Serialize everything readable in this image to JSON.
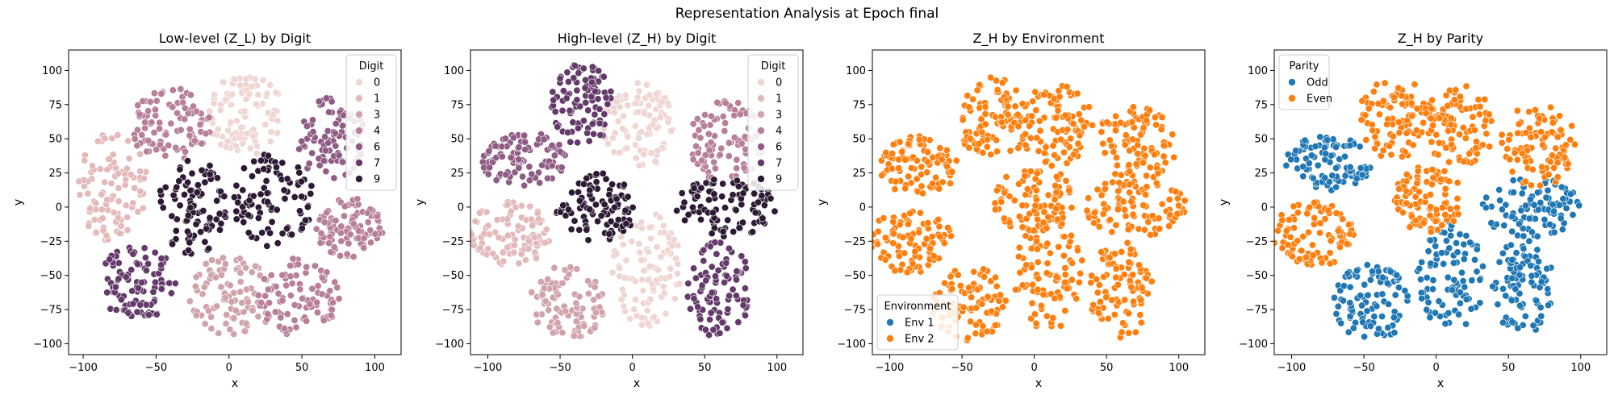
{
  "figure": {
    "suptitle": "Representation Analysis at Epoch final"
  },
  "chart_data": [
    {
      "type": "scatter",
      "title": "Low-level (Z_L) by Digit",
      "xlabel": "x",
      "ylabel": "y",
      "xlim": [
        -110,
        118
      ],
      "ylim": [
        -108,
        115
      ],
      "xticks": [
        -100,
        -50,
        0,
        50,
        100
      ],
      "yticks": [
        -100,
        -75,
        -50,
        -25,
        0,
        25,
        50,
        75,
        100
      ],
      "grid": false,
      "legend": {
        "title": "Digit",
        "placement": "top-right"
      },
      "series": [
        {
          "name": "0",
          "color": "#efd6d3",
          "clusters": [
            {
              "cx": 12,
              "cy": 68,
              "rx": 26,
              "ry": 30
            }
          ]
        },
        {
          "name": "1",
          "color": "#e3b9b9",
          "clusters": [
            {
              "cx": -80,
              "cy": 15,
              "rx": 24,
              "ry": 40
            }
          ]
        },
        {
          "name": "3",
          "color": "#d0a2ac",
          "clusters": [
            {
              "cx": 2,
              "cy": -65,
              "rx": 30,
              "ry": 30
            }
          ]
        },
        {
          "name": "4",
          "color": "#b77f99",
          "clusters": [
            {
              "cx": 48,
              "cy": -65,
              "rx": 28,
              "ry": 30
            },
            {
              "cx": 82,
              "cy": -15,
              "rx": 24,
              "ry": 22
            },
            {
              "cx": -40,
              "cy": 60,
              "rx": 28,
              "ry": 28
            }
          ]
        },
        {
          "name": "6",
          "color": "#8e5c84",
          "clusters": [
            {
              "cx": 70,
              "cy": 50,
              "rx": 24,
              "ry": 30
            }
          ]
        },
        {
          "name": "7",
          "color": "#633a69",
          "clusters": [
            {
              "cx": -62,
              "cy": -55,
              "rx": 28,
              "ry": 28
            }
          ]
        },
        {
          "name": "9",
          "color": "#2d1a35",
          "clusters": [
            {
              "cx": -25,
              "cy": 0,
              "rx": 24,
              "ry": 35
            },
            {
              "cx": 30,
              "cy": 5,
              "rx": 28,
              "ry": 35
            }
          ]
        }
      ]
    },
    {
      "type": "scatter",
      "title": "High-level (Z_H) by Digit",
      "xlabel": "x",
      "ylabel": "y",
      "xlim": [
        -112,
        118
      ],
      "ylim": [
        -108,
        115
      ],
      "xticks": [
        -100,
        -50,
        0,
        50,
        100
      ],
      "yticks": [
        -100,
        -75,
        -50,
        -25,
        0,
        25,
        50,
        75,
        100
      ],
      "grid": false,
      "legend": {
        "title": "Digit",
        "placement": "top-right"
      },
      "series": [
        {
          "name": "0",
          "color": "#efd6d3",
          "clusters": [
            {
              "cx": 5,
              "cy": 60,
              "rx": 25,
              "ry": 32
            },
            {
              "cx": 10,
              "cy": -45,
              "rx": 24,
              "ry": 42
            }
          ]
        },
        {
          "name": "1",
          "color": "#e3b9b9",
          "clusters": [
            {
              "cx": -85,
              "cy": -20,
              "rx": 28,
              "ry": 24
            }
          ]
        },
        {
          "name": "3",
          "color": "#d0a2ac",
          "clusters": [
            {
              "cx": -45,
              "cy": -70,
              "rx": 26,
              "ry": 28
            }
          ]
        },
        {
          "name": "4",
          "color": "#b77f99",
          "clusters": [
            {
              "cx": 65,
              "cy": 48,
              "rx": 26,
              "ry": 30
            }
          ]
        },
        {
          "name": "6",
          "color": "#8e5c84",
          "clusters": [
            {
              "cx": -75,
              "cy": 35,
              "rx": 30,
              "ry": 20
            }
          ]
        },
        {
          "name": "7",
          "color": "#633a69",
          "clusters": [
            {
              "cx": -35,
              "cy": 75,
              "rx": 22,
              "ry": 30
            },
            {
              "cx": 60,
              "cy": -60,
              "rx": 22,
              "ry": 36
            }
          ]
        },
        {
          "name": "9",
          "color": "#2d1a35",
          "clusters": [
            {
              "cx": -25,
              "cy": 0,
              "rx": 28,
              "ry": 25
            },
            {
              "cx": 65,
              "cy": 0,
              "rx": 35,
              "ry": 22
            }
          ]
        }
      ]
    },
    {
      "type": "scatter",
      "title": "Z_H by Environment",
      "xlabel": "x",
      "ylabel": "y",
      "xlim": [
        -112,
        118
      ],
      "ylim": [
        -108,
        115
      ],
      "xticks": [
        -100,
        -50,
        0,
        50,
        100
      ],
      "yticks": [
        -100,
        -75,
        -50,
        -25,
        0,
        25,
        50,
        75,
        100
      ],
      "grid": false,
      "legend": {
        "title": "Environment",
        "placement": "bottom-left"
      },
      "series": [
        {
          "name": "Env 1",
          "color": "#1f77b4",
          "clusters": []
        },
        {
          "name": "Env 2",
          "color": "#ff7f0e",
          "clusters": [
            {
              "cx": -28,
              "cy": 65,
              "rx": 26,
              "ry": 30
            },
            {
              "cx": 15,
              "cy": 60,
              "rx": 26,
              "ry": 30
            },
            {
              "cx": 70,
              "cy": 45,
              "rx": 28,
              "ry": 30
            },
            {
              "cx": -80,
              "cy": 30,
              "rx": 28,
              "ry": 22
            },
            {
              "cx": 0,
              "cy": 5,
              "rx": 28,
              "ry": 25
            },
            {
              "cx": 70,
              "cy": 0,
              "rx": 35,
              "ry": 22
            },
            {
              "cx": -85,
              "cy": -25,
              "rx": 28,
              "ry": 25
            },
            {
              "cx": -45,
              "cy": -70,
              "rx": 26,
              "ry": 28
            },
            {
              "cx": 10,
              "cy": -50,
              "rx": 24,
              "ry": 40
            },
            {
              "cx": 60,
              "cy": -60,
              "rx": 22,
              "ry": 36
            }
          ]
        }
      ]
    },
    {
      "type": "scatter",
      "title": "Z_H by Parity",
      "xlabel": "x",
      "ylabel": "y",
      "xlim": [
        -112,
        118
      ],
      "ylim": [
        -108,
        115
      ],
      "xticks": [
        -100,
        -50,
        0,
        50,
        100
      ],
      "yticks": [
        -100,
        -75,
        -50,
        -25,
        0,
        25,
        50,
        75,
        100
      ],
      "grid": false,
      "legend": {
        "title": "Parity",
        "placement": "top-left"
      },
      "series": [
        {
          "name": "Odd",
          "color": "#1f77b4",
          "clusters": [
            {
              "cx": -75,
              "cy": 32,
              "rx": 30,
              "ry": 20
            },
            {
              "cx": 65,
              "cy": 0,
              "rx": 35,
              "ry": 22
            },
            {
              "cx": -45,
              "cy": -70,
              "rx": 26,
              "ry": 28
            },
            {
              "cx": 10,
              "cy": -50,
              "rx": 24,
              "ry": 40
            },
            {
              "cx": 60,
              "cy": -60,
              "rx": 22,
              "ry": 36
            }
          ]
        },
        {
          "name": "Even",
          "color": "#ff7f0e",
          "clusters": [
            {
              "cx": -28,
              "cy": 65,
              "rx": 26,
              "ry": 30
            },
            {
              "cx": 15,
              "cy": 60,
              "rx": 26,
              "ry": 30
            },
            {
              "cx": 70,
              "cy": 45,
              "rx": 28,
              "ry": 30
            },
            {
              "cx": -5,
              "cy": 5,
              "rx": 25,
              "ry": 25
            },
            {
              "cx": -85,
              "cy": -20,
              "rx": 28,
              "ry": 24
            }
          ]
        }
      ]
    }
  ]
}
